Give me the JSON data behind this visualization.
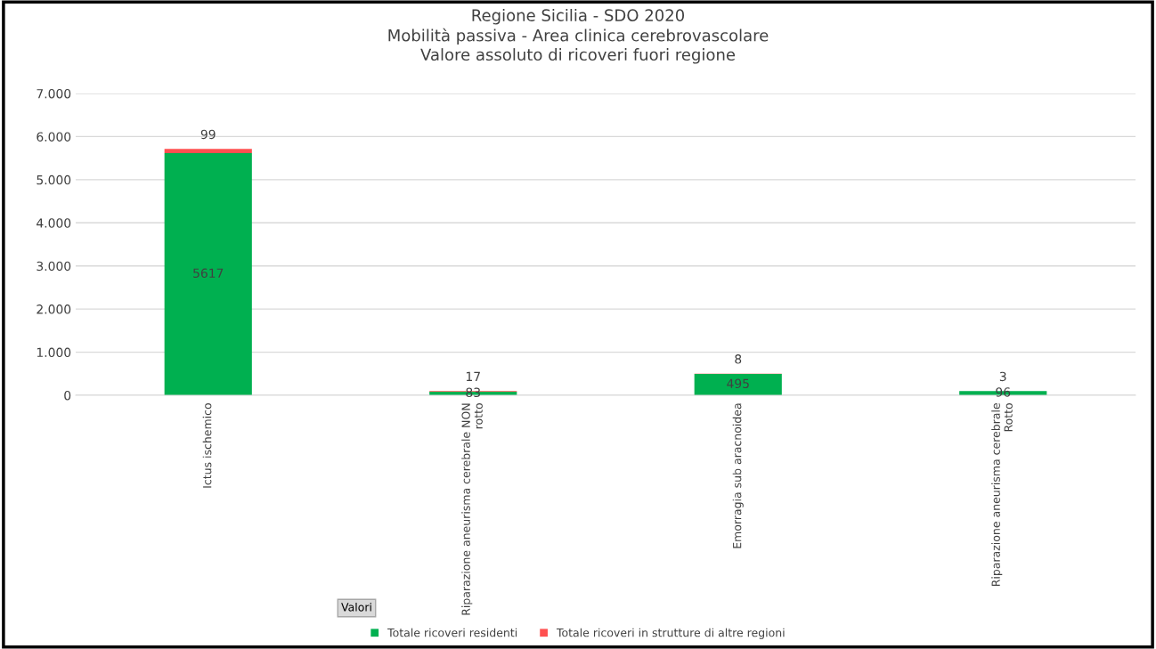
{
  "chart_data": {
    "type": "bar",
    "stacked": true,
    "title": "Regione Sicilia - SDO 2020\nMobilità passiva - Area clinica cerebrovascolare\nValore assoluto di ricoveri fuori regione",
    "categories": [
      "Ictus ischemico",
      "Riparazione aneurisma cerebrale NON rotto",
      "Emorragia sub aracnoidea",
      "Riparazione aneurisma cerebrale Rotto"
    ],
    "series": [
      {
        "name": "Totale ricoveri residenti",
        "color": "#00b050",
        "values": [
          5617,
          83,
          495,
          96
        ]
      },
      {
        "name": "Totale ricoveri in strutture di altre regioni",
        "color": "#ff5050",
        "values": [
          99,
          17,
          8,
          3
        ]
      }
    ],
    "ylim": [
      0,
      7000
    ],
    "yticks": [
      {
        "value": 0,
        "label": "0"
      },
      {
        "value": 1000,
        "label": "1.000"
      },
      {
        "value": 2000,
        "label": "2.000"
      },
      {
        "value": 3000,
        "label": "3.000"
      },
      {
        "value": 4000,
        "label": "4.000"
      },
      {
        "value": 5000,
        "label": "5.000"
      },
      {
        "value": 6000,
        "label": "6.000"
      },
      {
        "value": 7000,
        "label": "7.000"
      }
    ],
    "grid": "y",
    "legend": "bottom",
    "data_labels": true,
    "annotations": [
      "Valori"
    ]
  }
}
